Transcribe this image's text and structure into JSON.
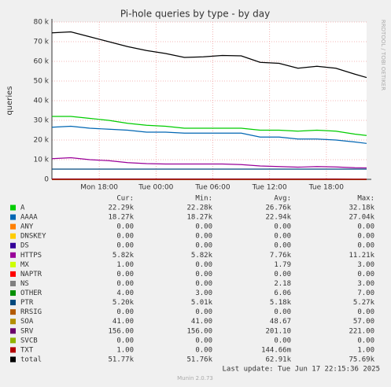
{
  "chart_data": {
    "type": "line",
    "title": "Pi-hole queries by type - by day",
    "y_label": "queries",
    "side_note": "RRDTOOL / TOBI OETIKER",
    "last_update": "Last update: Tue Jun 17 22:15:36 2025",
    "footer": "Munin 2.0.73",
    "columns": [
      "Cur:",
      "Min:",
      "Avg:",
      "Max:"
    ],
    "x": [
      13,
      15,
      17,
      19,
      21,
      23,
      25,
      27,
      29,
      31,
      33,
      35,
      37,
      39,
      41,
      43,
      45,
      46.25
    ],
    "xlim": [
      13,
      46.25
    ],
    "xticks": [
      {
        "value": 18,
        "label": "Mon 18:00"
      },
      {
        "value": 24,
        "label": "Tue 00:00"
      },
      {
        "value": 30,
        "label": "Tue 06:00"
      },
      {
        "value": 36,
        "label": "Tue 12:00"
      },
      {
        "value": 42,
        "label": "Tue 18:00"
      }
    ],
    "ylim": [
      0,
      80000
    ],
    "yticks": [
      0,
      {
        "value": 10000,
        "label": "10 k"
      },
      {
        "value": 20000,
        "label": "20 k"
      },
      {
        "value": 30000,
        "label": "30 k"
      },
      {
        "value": 40000,
        "label": "40 k"
      },
      {
        "value": 50000,
        "label": "50 k"
      },
      {
        "value": 60000,
        "label": "60 k"
      },
      {
        "value": 70000,
        "label": "70 k"
      },
      {
        "value": 80000,
        "label": "80 k"
      }
    ],
    "grid": true,
    "series": [
      {
        "name": "A",
        "color": "#00cc00",
        "cur": "22.29k",
        "min": "22.28k",
        "avg": "26.76k",
        "max": "32.18k",
        "values": [
          32000,
          32000,
          31000,
          30000,
          28500,
          27500,
          27000,
          26000,
          26000,
          26000,
          26000,
          25000,
          25000,
          24500,
          25000,
          24500,
          23000,
          22290
        ]
      },
      {
        "name": "AAAA",
        "color": "#0066b3",
        "cur": "18.27k",
        "min": "18.27k",
        "avg": "22.94k",
        "max": "27.04k",
        "values": [
          26500,
          27000,
          26000,
          25500,
          25000,
          24000,
          24000,
          23500,
          23500,
          23500,
          23500,
          21500,
          21500,
          20500,
          20500,
          20000,
          19000,
          18270
        ]
      },
      {
        "name": "ANY",
        "color": "#ff8000",
        "cur": "0.00",
        "min": "0.00",
        "avg": "0.00",
        "max": "0.00",
        "values": [
          0,
          0,
          0,
          0,
          0,
          0,
          0,
          0,
          0,
          0,
          0,
          0,
          0,
          0,
          0,
          0,
          0,
          0
        ]
      },
      {
        "name": "DNSKEY",
        "color": "#ffcc00",
        "cur": "0.00",
        "min": "0.00",
        "avg": "0.00",
        "max": "0.00",
        "values": [
          0,
          0,
          0,
          0,
          0,
          0,
          0,
          0,
          0,
          0,
          0,
          0,
          0,
          0,
          0,
          0,
          0,
          0
        ]
      },
      {
        "name": "DS",
        "color": "#330099",
        "cur": "0.00",
        "min": "0.00",
        "avg": "0.00",
        "max": "0.00",
        "values": [
          0,
          0,
          0,
          0,
          0,
          0,
          0,
          0,
          0,
          0,
          0,
          0,
          0,
          0,
          0,
          0,
          0,
          0
        ]
      },
      {
        "name": "HTTPS",
        "color": "#990099",
        "cur": "5.82k",
        "min": "5.82k",
        "avg": "7.76k",
        "max": "11.21k",
        "values": [
          10500,
          11000,
          10000,
          9500,
          8500,
          8000,
          7800,
          7800,
          7800,
          7800,
          7500,
          6800,
          6500,
          6200,
          6500,
          6300,
          5900,
          5820
        ]
      },
      {
        "name": "MX",
        "color": "#ccff00",
        "cur": "1.00",
        "min": "0.00",
        "avg": "1.79",
        "max": "3.00",
        "values": [
          2,
          2,
          2,
          2,
          2,
          2,
          2,
          2,
          2,
          2,
          2,
          2,
          2,
          2,
          2,
          2,
          2,
          1
        ]
      },
      {
        "name": "NAPTR",
        "color": "#ff0000",
        "cur": "0.00",
        "min": "0.00",
        "avg": "0.00",
        "max": "0.00",
        "values": [
          0,
          0,
          0,
          0,
          0,
          0,
          0,
          0,
          0,
          0,
          0,
          0,
          0,
          0,
          0,
          0,
          0,
          0
        ]
      },
      {
        "name": "NS",
        "color": "#808080",
        "cur": "0.00",
        "min": "0.00",
        "avg": "2.18",
        "max": "3.00",
        "values": [
          2,
          2,
          2,
          2,
          2,
          2,
          2,
          2,
          2,
          2,
          2,
          2,
          2,
          2,
          2,
          2,
          2,
          0
        ]
      },
      {
        "name": "OTHER",
        "color": "#008f00",
        "cur": "4.00",
        "min": "3.00",
        "avg": "6.06",
        "max": "7.00",
        "values": [
          6,
          6,
          6,
          6,
          6,
          6,
          6,
          6,
          6,
          6,
          6,
          6,
          6,
          6,
          6,
          6,
          6,
          4
        ]
      },
      {
        "name": "PTR",
        "color": "#00487d",
        "cur": "5.20k",
        "min": "5.01k",
        "avg": "5.18k",
        "max": "5.27k",
        "values": [
          5200,
          5200,
          5200,
          5200,
          5200,
          5200,
          5200,
          5200,
          5200,
          5200,
          5200,
          5200,
          5200,
          5200,
          5200,
          5200,
          5200,
          5200
        ]
      },
      {
        "name": "RRSIG",
        "color": "#b35a00",
        "cur": "0.00",
        "min": "0.00",
        "avg": "0.00",
        "max": "0.00",
        "values": [
          0,
          0,
          0,
          0,
          0,
          0,
          0,
          0,
          0,
          0,
          0,
          0,
          0,
          0,
          0,
          0,
          0,
          0
        ]
      },
      {
        "name": "SOA",
        "color": "#b38f00",
        "cur": "41.00",
        "min": "41.00",
        "avg": "48.67",
        "max": "57.00",
        "values": [
          50,
          50,
          50,
          50,
          50,
          50,
          50,
          50,
          50,
          50,
          50,
          50,
          50,
          50,
          50,
          50,
          50,
          41
        ]
      },
      {
        "name": "SRV",
        "color": "#6b006b",
        "cur": "156.00",
        "min": "156.00",
        "avg": "201.10",
        "max": "221.00",
        "values": [
          210,
          210,
          210,
          210,
          205,
          205,
          200,
          200,
          200,
          200,
          200,
          195,
          195,
          195,
          190,
          190,
          180,
          156
        ]
      },
      {
        "name": "SVCB",
        "color": "#8fb300",
        "cur": "0.00",
        "min": "0.00",
        "avg": "0.00",
        "max": "0.00",
        "values": [
          0,
          0,
          0,
          0,
          0,
          0,
          0,
          0,
          0,
          0,
          0,
          0,
          0,
          0,
          0,
          0,
          0,
          0
        ]
      },
      {
        "name": "TXT",
        "color": "#b30000",
        "cur": "1.00",
        "min": "0.00",
        "avg": "144.66m",
        "max": "1.00",
        "values": [
          0,
          0,
          0,
          0,
          0,
          0,
          0,
          0,
          0,
          0,
          0,
          0,
          0,
          0,
          0,
          0,
          0,
          1
        ]
      },
      {
        "name": "total",
        "color": "#000000",
        "cur": "51.77k",
        "min": "51.76k",
        "avg": "62.91k",
        "max": "75.69k",
        "values": [
          74500,
          75000,
          72500,
          70000,
          67500,
          65500,
          64000,
          62000,
          62300,
          63000,
          62800,
          59500,
          59000,
          56500,
          57500,
          56500,
          53500,
          51770
        ]
      }
    ]
  }
}
